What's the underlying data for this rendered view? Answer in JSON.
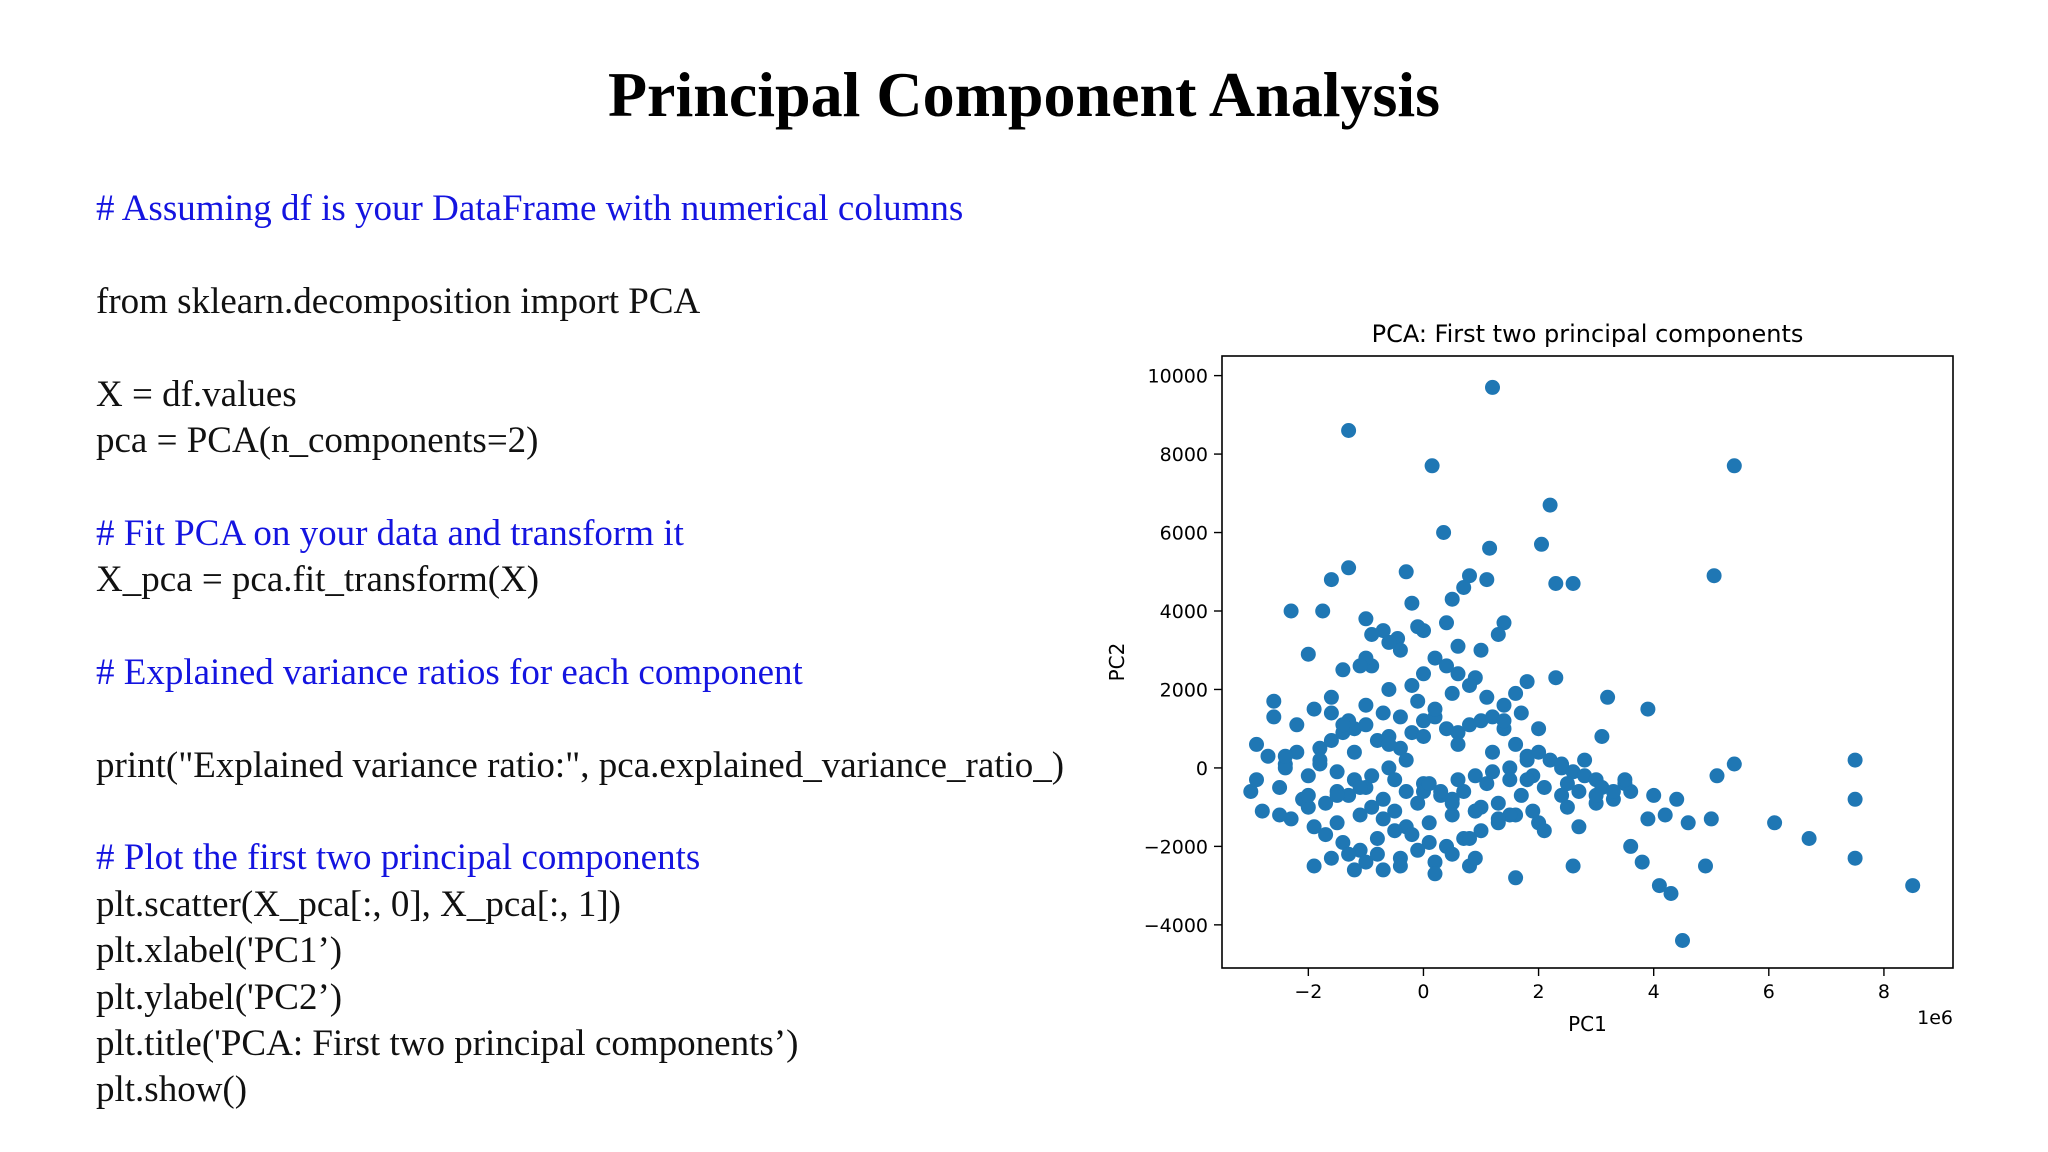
{
  "slide": {
    "title": "Principal Component Analysis"
  },
  "code": [
    {
      "text": "# Assuming df is your DataFrame with numerical columns",
      "comment": true
    },
    {
      "text": "",
      "comment": false
    },
    {
      "text": "from sklearn.decomposition import PCA",
      "comment": false
    },
    {
      "text": "",
      "comment": false
    },
    {
      "text": "X = df.values",
      "comment": false
    },
    {
      "text": "pca = PCA(n_components=2)",
      "comment": false
    },
    {
      "text": "",
      "comment": false
    },
    {
      "text": "# Fit PCA on your data and transform it",
      "comment": true
    },
    {
      "text": "X_pca = pca.fit_transform(X)",
      "comment": false
    },
    {
      "text": "",
      "comment": false
    },
    {
      "text": "# Explained variance ratios for each component",
      "comment": true
    },
    {
      "text": "",
      "comment": false
    },
    {
      "text": "print(\"Explained variance ratio:\", pca.explained_variance_ratio_)",
      "comment": false
    },
    {
      "text": "",
      "comment": false
    },
    {
      "text": "# Plot the first two principal components",
      "comment": true
    },
    {
      "text": "plt.scatter(X_pca[:, 0], X_pca[:, 1])",
      "comment": false
    },
    {
      "text": "plt.xlabel('PC1’)",
      "comment": false
    },
    {
      "text": "plt.ylabel('PC2’)",
      "comment": false
    },
    {
      "text": "plt.title('PCA: First two principal components’)",
      "comment": false
    },
    {
      "text": "plt.show()",
      "comment": false
    }
  ],
  "colors": {
    "comment": "#1414e0",
    "code": "#111111",
    "marker": "#1f77b4"
  },
  "chart_data": {
    "type": "scatter",
    "title": "PCA: First two principal components",
    "xlabel": "PC1",
    "ylabel": "PC2",
    "x_offset_label": "1e6",
    "xlim": [
      -3.5,
      9.2
    ],
    "ylim": [
      -5100,
      10500
    ],
    "xticks": [
      -2,
      0,
      2,
      4,
      6,
      8
    ],
    "xtick_labels": [
      "−2",
      "0",
      "2",
      "4",
      "6",
      "8"
    ],
    "yticks": [
      -4000,
      -2000,
      0,
      2000,
      4000,
      6000,
      8000,
      10000
    ],
    "ytick_labels": [
      "−4000",
      "−2000",
      "0",
      "2000",
      "4000",
      "6000",
      "8000",
      "10000"
    ],
    "grid": false,
    "series": [
      {
        "x": [
          1.2,
          -1.3,
          0.15,
          5.4,
          2.2,
          0.35,
          1.15,
          2.05,
          -1.3,
          5.05,
          -1.6,
          2.3,
          2.6,
          -2.3,
          -1.75,
          -0.7,
          -0.45,
          0.0,
          0.4,
          0.8,
          1.0,
          -1.0,
          -0.4,
          1.4,
          -2.0,
          -0.9,
          0.2,
          0.9,
          1.6,
          -1.4,
          -0.2,
          0.6,
          -0.6,
          -2.6,
          2.3,
          3.2,
          3.9,
          0.5,
          -0.3,
          1.1,
          -2.9,
          -2.7,
          -2.4,
          -2.2,
          -2.0,
          -1.8,
          -1.6,
          -1.4,
          -1.2,
          -1.0,
          -0.8,
          -0.6,
          -0.4,
          -0.2,
          0.0,
          0.2,
          0.4,
          0.6,
          0.8,
          1.0,
          1.2,
          1.4,
          1.6,
          1.8,
          2.0,
          2.2,
          2.4,
          2.6,
          2.8,
          3.0,
          -3.0,
          -2.5,
          -2.1,
          -1.7,
          -1.3,
          -0.9,
          -0.5,
          -0.1,
          0.3,
          0.7,
          1.1,
          1.5,
          1.9,
          2.5,
          3.1,
          3.6,
          4.0,
          4.4,
          -2.8,
          -2.3,
          -1.9,
          -1.5,
          -1.1,
          -0.7,
          -0.3,
          0.1,
          0.5,
          0.9,
          1.3,
          1.7,
          -1.8,
          -1.5,
          -1.2,
          -0.9,
          -0.6,
          -0.3,
          0.0,
          0.3,
          0.6,
          0.9,
          1.2,
          1.5,
          1.8,
          2.1,
          2.4,
          2.7,
          3.0,
          3.3,
          -1.7,
          -1.4,
          -1.1,
          -0.8,
          -0.5,
          -0.2,
          0.1,
          0.4,
          0.7,
          1.0,
          1.3,
          1.6,
          -2.6,
          -2.2,
          -1.9,
          -1.6,
          -1.3,
          -1.0,
          -0.7,
          -0.4,
          -0.1,
          0.2,
          0.5,
          0.8,
          1.1,
          1.4,
          1.7,
          2.0,
          -2.5,
          -2.0,
          -1.5,
          -1.0,
          -0.5,
          0.0,
          0.5,
          1.0,
          1.5,
          2.0,
          2.5,
          3.0,
          3.5,
          -1.9,
          -1.6,
          -1.3,
          -1.0,
          -0.7,
          -0.4,
          -0.1,
          0.2,
          0.5,
          0.8,
          -1.5,
          -1.1,
          -0.7,
          -0.3,
          0.1,
          0.5,
          0.9,
          1.3,
          -2.9,
          -2.4,
          -1.8,
          -1.2,
          -0.6,
          0.0,
          0.6,
          1.2,
          1.8,
          2.4,
          4.3,
          4.1,
          4.5,
          3.8,
          3.6,
          4.9,
          5.0,
          6.1,
          6.7,
          7.5,
          7.5,
          7.5,
          8.5,
          5.1,
          5.4,
          4.6,
          3.5,
          3.3,
          3.9,
          4.2,
          -1.0,
          -0.6,
          -0.2,
          0.7,
          1.3,
          2.8,
          0.0,
          -1.4,
          1.9,
          2.6,
          -0.8,
          0.8,
          -2.0,
          0.2,
          1.6,
          -0.4,
          -1.2,
          0.9,
          2.1,
          -2.4,
          -1.6,
          1.4,
          0.4,
          -0.9,
          0.6,
          3.1,
          -0.1,
          1.8,
          -1.1,
          2.7
        ],
        "y": [
          9700,
          8600,
          7700,
          7700,
          6700,
          6000,
          5600,
          5700,
          5100,
          4900,
          4800,
          4700,
          4700,
          4000,
          4000,
          3500,
          3300,
          3500,
          3700,
          4900,
          3000,
          3800,
          3000,
          3700,
          2900,
          2600,
          2800,
          2300,
          1900,
          2500,
          2100,
          2400,
          2000,
          1700,
          2300,
          1800,
          1500,
          4300,
          5000,
          4800,
          600,
          300,
          100,
          400,
          -200,
          500,
          700,
          900,
          1000,
          1100,
          700,
          800,
          500,
          900,
          1200,
          1300,
          1000,
          900,
          1100,
          1200,
          1300,
          1000,
          600,
          300,
          400,
          200,
          0,
          -100,
          -200,
          -300,
          -600,
          -500,
          -800,
          -900,
          -700,
          -1000,
          -1100,
          -900,
          -700,
          -600,
          -400,
          -300,
          -200,
          -400,
          -500,
          -600,
          -700,
          -800,
          -1100,
          -1300,
          -1500,
          -1400,
          -1200,
          -1300,
          -1500,
          -1400,
          -1200,
          -1100,
          -900,
          -700,
          100,
          -100,
          -300,
          -200,
          0,
          200,
          -400,
          -600,
          -300,
          -200,
          -100,
          0,
          -300,
          -500,
          -700,
          -600,
          -900,
          -800,
          -1700,
          -1900,
          -2100,
          -1800,
          -1600,
          -1700,
          -1900,
          -2000,
          -1800,
          -1600,
          -1400,
          -1200,
          1300,
          1100,
          1500,
          1400,
          1200,
          1600,
          1400,
          1300,
          1700,
          1500,
          1900,
          2100,
          1800,
          1600,
          1400,
          1000,
          -1200,
          -1000,
          -600,
          -500,
          -300,
          -600,
          -800,
          -1000,
          -1200,
          -1400,
          -1000,
          -700,
          -400,
          -2500,
          -2300,
          -2200,
          -2400,
          -2600,
          -2300,
          -2100,
          -2400,
          -2200,
          -2500,
          -700,
          -500,
          -800,
          -600,
          -400,
          -900,
          -1100,
          -1300,
          -300,
          0,
          200,
          400,
          600,
          800,
          600,
          400,
          200,
          100,
          -3200,
          -3000,
          -4400,
          -2400,
          -2000,
          -2500,
          -1300,
          -1400,
          -1800,
          -2300,
          -800,
          200,
          -3000,
          -200,
          100,
          -1400,
          -300,
          -600,
          -1300,
          -1200,
          2800,
          3200,
          4200,
          4600,
          3400,
          200,
          2400,
          1100,
          -1100,
          -2500,
          -2200,
          -1800,
          -700,
          -2700,
          -2800,
          -2500,
          -2600,
          -2300,
          -1600,
          300,
          1800,
          1200,
          2600,
          3400,
          3100,
          800,
          3600,
          2200,
          2600,
          -1500
        ]
      }
    ]
  }
}
